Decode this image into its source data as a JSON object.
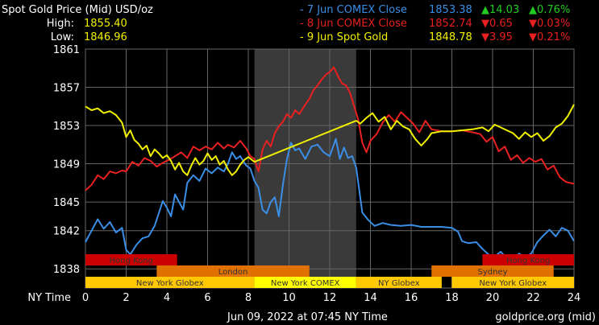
{
  "header": {
    "title": "Spot Gold Price (Mid) USD/oz",
    "high_label": "High:",
    "high_value": "1855.40",
    "low_label": "Low:",
    "low_value": "1846.96",
    "legend": [
      {
        "name": "- 7 Jun COMEX Close",
        "price": "1853.38",
        "change": "▲14.03",
        "pct": "▲0.76%",
        "color": "#3a8ee6",
        "change_color": "#22cc22"
      },
      {
        "name": "- 8 Jun COMEX Close",
        "price": "1852.74",
        "change": "▼0.65",
        "pct": "▼0.03%",
        "color": "#e82020",
        "change_color": "#e82020"
      },
      {
        "name": "- 9 Jun Spot Gold",
        "price": "1848.78",
        "change": "▼3.95",
        "pct": "▼0.21%",
        "color": "#f0f000",
        "change_color": "#e82020"
      }
    ]
  },
  "footer": {
    "timestamp": "Jun 09, 2022 at 07:45 NY Time",
    "source": "goldprice.org (mid)",
    "x_axis_label": "NY Time"
  },
  "colors": {
    "background": "#000000",
    "grid": "#666666",
    "shaded_region": "#3a3a3a",
    "sessions": {
      "hong_kong": "#cc0000",
      "london": "#e07000",
      "sydney": "#e07000",
      "new_york": "#ffc800",
      "comex": "#ffff00"
    }
  },
  "chart_data": {
    "type": "line",
    "title": "Spot Gold Price (Mid) USD/oz",
    "xlabel": "NY Time",
    "ylabel": "",
    "xlim": [
      0,
      24
    ],
    "ylim": [
      1836,
      1861
    ],
    "x_ticks": [
      0,
      2,
      4,
      6,
      8,
      10,
      12,
      14,
      16,
      18,
      20,
      22,
      24
    ],
    "y_ticks": [
      1838,
      1842,
      1845,
      1849,
      1853,
      1857,
      1861
    ],
    "grid": true,
    "shaded_interval": [
      8.3,
      13.3
    ],
    "sessions": [
      {
        "row": 0,
        "label": "Hong Kong",
        "start": 0,
        "end": 4.5,
        "color": "#cc0000"
      },
      {
        "row": 0,
        "label": "Hong Kong",
        "start": 19.5,
        "end": 24,
        "color": "#cc0000"
      },
      {
        "row": 1,
        "label": "London",
        "start": 3.5,
        "end": 11,
        "color": "#e07000"
      },
      {
        "row": 1,
        "label": "Sydney",
        "start": 17,
        "end": 23,
        "color": "#e07000"
      },
      {
        "row": 2,
        "label": "New York Globex",
        "start": 0,
        "end": 8.3,
        "color": "#ffc800"
      },
      {
        "row": 2,
        "label": "New York COMEX",
        "start": 8.3,
        "end": 13.3,
        "color": "#ffff00"
      },
      {
        "row": 2,
        "label": "NY Globex",
        "start": 13.3,
        "end": 17.5,
        "color": "#ffc800"
      },
      {
        "row": 2,
        "label": "New York Globex",
        "start": 18,
        "end": 24,
        "color": "#ffc800"
      }
    ],
    "series": [
      {
        "name": "7 Jun COMEX Close",
        "color": "#3a8ee6",
        "points": [
          [
            0,
            1840.8
          ],
          [
            0.3,
            1842
          ],
          [
            0.6,
            1843.2
          ],
          [
            0.9,
            1842.2
          ],
          [
            1.2,
            1842.9
          ],
          [
            1.5,
            1841.8
          ],
          [
            1.8,
            1842.3
          ],
          [
            2.0,
            1840
          ],
          [
            2.2,
            1839.5
          ],
          [
            2.5,
            1840.5
          ],
          [
            2.8,
            1841.2
          ],
          [
            3.1,
            1841.4
          ],
          [
            3.4,
            1842.5
          ],
          [
            3.6,
            1843.8
          ],
          [
            3.8,
            1845.1
          ],
          [
            4.0,
            1844.4
          ],
          [
            4.2,
            1843.5
          ],
          [
            4.4,
            1845.8
          ],
          [
            4.6,
            1845
          ],
          [
            4.8,
            1844.2
          ],
          [
            5.0,
            1847
          ],
          [
            5.3,
            1847.8
          ],
          [
            5.6,
            1847.2
          ],
          [
            5.9,
            1848.5
          ],
          [
            6.2,
            1848
          ],
          [
            6.5,
            1848.6
          ],
          [
            6.8,
            1848.2
          ],
          [
            7.0,
            1849
          ],
          [
            7.2,
            1850.2
          ],
          [
            7.4,
            1849.5
          ],
          [
            7.6,
            1849.8
          ],
          [
            7.9,
            1848.8
          ],
          [
            8.1,
            1848.5
          ],
          [
            8.3,
            1847.2
          ],
          [
            8.5,
            1846.5
          ],
          [
            8.7,
            1844.2
          ],
          [
            8.9,
            1843.8
          ],
          [
            9.1,
            1845
          ],
          [
            9.3,
            1845.5
          ],
          [
            9.5,
            1843.5
          ],
          [
            9.7,
            1846.8
          ],
          [
            9.9,
            1849.5
          ],
          [
            10.1,
            1851.2
          ],
          [
            10.3,
            1850.4
          ],
          [
            10.5,
            1850.6
          ],
          [
            10.8,
            1849.5
          ],
          [
            11.1,
            1850.8
          ],
          [
            11.4,
            1851
          ],
          [
            11.7,
            1850.2
          ],
          [
            12.0,
            1849.8
          ],
          [
            12.3,
            1851.6
          ],
          [
            12.5,
            1849.5
          ],
          [
            12.7,
            1850.7
          ],
          [
            12.9,
            1849.6
          ],
          [
            13.1,
            1849.8
          ],
          [
            13.3,
            1848.6
          ],
          [
            13.6,
            1843.9
          ],
          [
            13.9,
            1843.1
          ],
          [
            14.2,
            1842.5
          ],
          [
            14.6,
            1842.8
          ],
          [
            15.0,
            1842.6
          ],
          [
            15.5,
            1842.5
          ],
          [
            16.0,
            1842.6
          ],
          [
            16.5,
            1842.4
          ],
          [
            17.0,
            1842.4
          ],
          [
            17.5,
            1842.4
          ],
          [
            18.0,
            1842.3
          ],
          [
            18.3,
            1841.9
          ],
          [
            18.5,
            1840.9
          ],
          [
            18.8,
            1840.7
          ],
          [
            19.2,
            1840.8
          ],
          [
            19.5,
            1840.1
          ],
          [
            19.8,
            1839.5
          ],
          [
            20.1,
            1839.3
          ],
          [
            20.4,
            1839.8
          ],
          [
            20.7,
            1839.1
          ],
          [
            21.0,
            1838.9
          ],
          [
            21.3,
            1839.6
          ],
          [
            21.6,
            1839.2
          ],
          [
            21.9,
            1839.6
          ],
          [
            22.2,
            1840.8
          ],
          [
            22.5,
            1841.5
          ],
          [
            22.8,
            1842.1
          ],
          [
            23.1,
            1841.4
          ],
          [
            23.4,
            1842.3
          ],
          [
            23.7,
            1842
          ],
          [
            24.0,
            1840.9
          ]
        ]
      },
      {
        "name": "8 Jun COMEX Close",
        "color": "#e82020",
        "points": [
          [
            0,
            1846.2
          ],
          [
            0.3,
            1846.8
          ],
          [
            0.6,
            1847.8
          ],
          [
            0.9,
            1847.4
          ],
          [
            1.2,
            1848.2
          ],
          [
            1.5,
            1848
          ],
          [
            1.8,
            1848.3
          ],
          [
            2.0,
            1848.2
          ],
          [
            2.3,
            1849.2
          ],
          [
            2.6,
            1848.8
          ],
          [
            2.9,
            1849.6
          ],
          [
            3.2,
            1849.3
          ],
          [
            3.5,
            1848.7
          ],
          [
            3.8,
            1849.1
          ],
          [
            4.1,
            1849.4
          ],
          [
            4.4,
            1849.8
          ],
          [
            4.7,
            1850.2
          ],
          [
            5.0,
            1849.6
          ],
          [
            5.3,
            1850.8
          ],
          [
            5.6,
            1850.4
          ],
          [
            5.9,
            1850.8
          ],
          [
            6.2,
            1850.5
          ],
          [
            6.5,
            1851.2
          ],
          [
            6.8,
            1850.6
          ],
          [
            7.0,
            1851
          ],
          [
            7.3,
            1850.7
          ],
          [
            7.6,
            1851.4
          ],
          [
            7.9,
            1850.6
          ],
          [
            8.1,
            1849.8
          ],
          [
            8.3,
            1849.5
          ],
          [
            8.5,
            1848.2
          ],
          [
            8.7,
            1850.5
          ],
          [
            8.9,
            1851.4
          ],
          [
            9.1,
            1850.8
          ],
          [
            9.3,
            1852.2
          ],
          [
            9.5,
            1852.9
          ],
          [
            9.7,
            1853.4
          ],
          [
            9.9,
            1854.2
          ],
          [
            10.1,
            1853.8
          ],
          [
            10.3,
            1854.6
          ],
          [
            10.5,
            1854.2
          ],
          [
            10.8,
            1855.2
          ],
          [
            11.0,
            1855.8
          ],
          [
            11.2,
            1856.7
          ],
          [
            11.4,
            1857.2
          ],
          [
            11.6,
            1857.8
          ],
          [
            11.8,
            1858.3
          ],
          [
            12.0,
            1858.6
          ],
          [
            12.2,
            1859.1
          ],
          [
            12.4,
            1858.2
          ],
          [
            12.6,
            1857.4
          ],
          [
            12.8,
            1857.2
          ],
          [
            13.0,
            1856.4
          ],
          [
            13.2,
            1855
          ],
          [
            13.4,
            1853.6
          ],
          [
            13.6,
            1851.2
          ],
          [
            13.8,
            1850.2
          ],
          [
            14.0,
            1851.4
          ],
          [
            14.3,
            1852.1
          ],
          [
            14.6,
            1853.3
          ],
          [
            14.9,
            1854.1
          ],
          [
            15.2,
            1853.4
          ],
          [
            15.5,
            1854.4
          ],
          [
            15.8,
            1853.8
          ],
          [
            16.1,
            1853.2
          ],
          [
            16.4,
            1852.3
          ],
          [
            16.7,
            1853.5
          ],
          [
            17.0,
            1852.6
          ],
          [
            17.5,
            1852.4
          ],
          [
            18.0,
            1852.4
          ],
          [
            18.5,
            1852.5
          ],
          [
            19.0,
            1852.3
          ],
          [
            19.4,
            1852.1
          ],
          [
            19.7,
            1851.3
          ],
          [
            20.0,
            1851.8
          ],
          [
            20.3,
            1850.3
          ],
          [
            20.6,
            1850.8
          ],
          [
            20.9,
            1849.4
          ],
          [
            21.2,
            1849.9
          ],
          [
            21.5,
            1849.1
          ],
          [
            21.8,
            1849.6
          ],
          [
            22.1,
            1849.2
          ],
          [
            22.4,
            1849.5
          ],
          [
            22.7,
            1848.4
          ],
          [
            23.0,
            1848.8
          ],
          [
            23.3,
            1847.6
          ],
          [
            23.6,
            1847.1
          ],
          [
            24.0,
            1846.9
          ]
        ]
      },
      {
        "name": "9 Jun Spot Gold",
        "color": "#f0f000",
        "points": [
          [
            0,
            1855
          ],
          [
            0.3,
            1854.6
          ],
          [
            0.6,
            1854.8
          ],
          [
            0.9,
            1854.3
          ],
          [
            1.2,
            1854.5
          ],
          [
            1.5,
            1854.1
          ],
          [
            1.8,
            1853.3
          ],
          [
            2.0,
            1851.8
          ],
          [
            2.2,
            1852.5
          ],
          [
            2.4,
            1851.5
          ],
          [
            2.6,
            1851.1
          ],
          [
            2.8,
            1850.5
          ],
          [
            3.0,
            1850.9
          ],
          [
            3.2,
            1849.8
          ],
          [
            3.4,
            1850.5
          ],
          [
            3.6,
            1850.1
          ],
          [
            3.8,
            1849.6
          ],
          [
            4.0,
            1849.9
          ],
          [
            4.2,
            1849.3
          ],
          [
            4.4,
            1848.4
          ],
          [
            4.6,
            1849.1
          ],
          [
            4.8,
            1848.2
          ],
          [
            5.0,
            1847.8
          ],
          [
            5.2,
            1848.8
          ],
          [
            5.4,
            1849.6
          ],
          [
            5.6,
            1848.9
          ],
          [
            5.8,
            1849.3
          ],
          [
            6.0,
            1850.1
          ],
          [
            6.2,
            1849.4
          ],
          [
            6.4,
            1849.8
          ],
          [
            6.6,
            1848.9
          ],
          [
            6.8,
            1849.3
          ],
          [
            7.0,
            1848.4
          ],
          [
            7.2,
            1847.8
          ],
          [
            7.4,
            1848.2
          ],
          [
            7.6,
            1848.9
          ],
          [
            7.8,
            1849.4
          ],
          [
            8.0,
            1849.7
          ],
          [
            8.3,
            1849.2
          ],
          [
            13.3,
            1853.5
          ],
          [
            13.5,
            1853.2
          ],
          [
            13.8,
            1853.8
          ],
          [
            14.1,
            1854.3
          ],
          [
            14.4,
            1853.4
          ],
          [
            14.7,
            1853.9
          ],
          [
            15.0,
            1852.6
          ],
          [
            15.3,
            1853.5
          ],
          [
            15.6,
            1852.9
          ],
          [
            15.9,
            1852.6
          ],
          [
            16.2,
            1851.6
          ],
          [
            16.5,
            1850.9
          ],
          [
            16.8,
            1851.6
          ],
          [
            17.0,
            1852.2
          ],
          [
            17.5,
            1852.4
          ],
          [
            18.0,
            1852.4
          ],
          [
            18.5,
            1852.5
          ],
          [
            19.0,
            1852.6
          ],
          [
            19.5,
            1852.8
          ],
          [
            19.8,
            1852.4
          ],
          [
            20.1,
            1853.1
          ],
          [
            20.4,
            1852.8
          ],
          [
            20.7,
            1852.5
          ],
          [
            21.0,
            1852.2
          ],
          [
            21.3,
            1851.6
          ],
          [
            21.6,
            1852.3
          ],
          [
            21.9,
            1851.8
          ],
          [
            22.2,
            1852.2
          ],
          [
            22.5,
            1851.4
          ],
          [
            22.8,
            1851.9
          ],
          [
            23.1,
            1852.8
          ],
          [
            23.4,
            1853.2
          ],
          [
            23.7,
            1854
          ],
          [
            24.0,
            1855.2
          ]
        ]
      }
    ]
  }
}
